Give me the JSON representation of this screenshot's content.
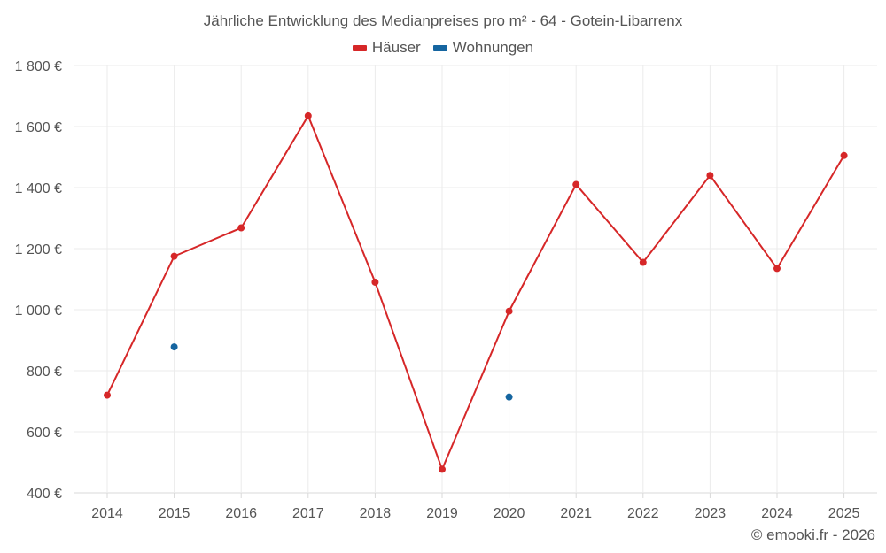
{
  "chart_data": {
    "type": "line",
    "title": "Jährliche Entwicklung des Medianpreises pro m² - 64 - Gotein-Libarrenx",
    "categories": [
      "2014",
      "2015",
      "2016",
      "2017",
      "2018",
      "2019",
      "2020",
      "2021",
      "2022",
      "2023",
      "2024",
      "2025"
    ],
    "series": [
      {
        "name": "Häuser",
        "color": "#d62728",
        "mode": "lines+markers",
        "values": [
          720,
          1175,
          1268,
          1635,
          1090,
          477,
          995,
          1410,
          1155,
          1440,
          1135,
          1505
        ]
      },
      {
        "name": "Wohnungen",
        "color": "#1565a0",
        "mode": "markers",
        "values": [
          null,
          878,
          null,
          null,
          null,
          null,
          714,
          null,
          null,
          null,
          null,
          null
        ]
      }
    ],
    "ylim": [
      400,
      1800
    ],
    "yticks": [
      400,
      600,
      800,
      1000,
      1200,
      1400,
      1600,
      1800
    ],
    "ytick_labels": [
      "400 €",
      "600 €",
      "800 €",
      "1 000 €",
      "1 200 €",
      "1 400 €",
      "1 600 €",
      "1 800 €"
    ],
    "grid": true,
    "legend": "top-center",
    "xlabel": "",
    "ylabel": ""
  },
  "credit": "© emooki.fr - 2026"
}
